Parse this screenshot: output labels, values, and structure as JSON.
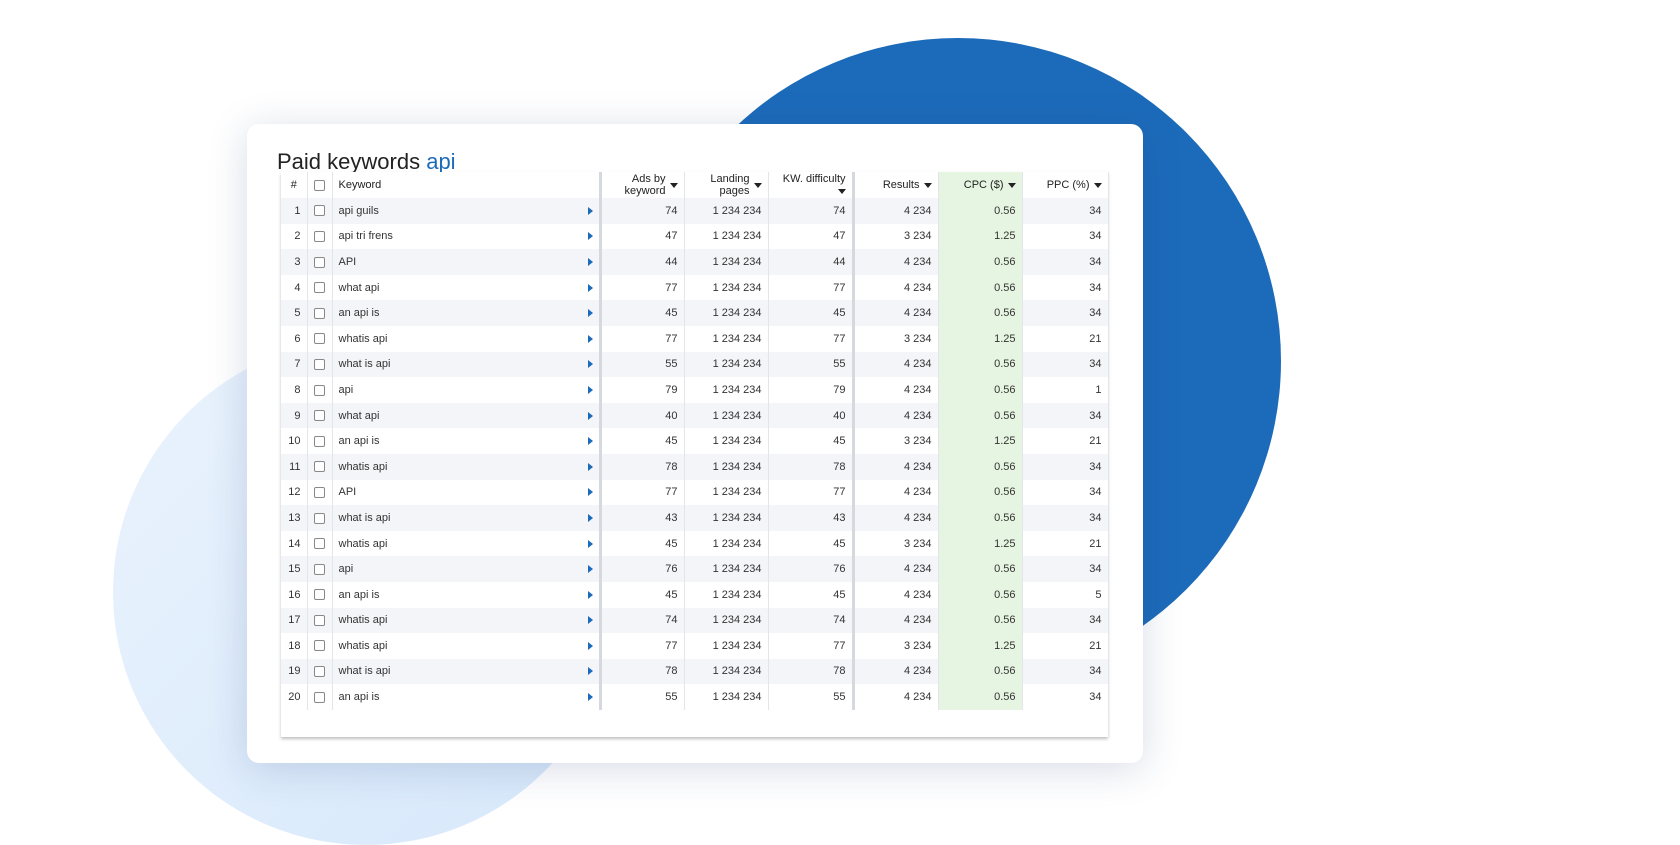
{
  "header": {
    "title": "Paid keywords",
    "title_highlight": "api"
  },
  "table": {
    "columns": [
      "#",
      "Keyword",
      "Ads by keyword",
      "Landing pages",
      "KW. difficulty",
      "Results",
      "CPC ($)",
      "PPC (%)"
    ],
    "rows": [
      [
        "1",
        "api guils",
        "74",
        "1 234 234",
        "74",
        "4 234",
        "0.56",
        "34"
      ],
      [
        "2",
        "api tri frens",
        "47",
        "1 234 234",
        "47",
        "3 234",
        "1.25",
        "34"
      ],
      [
        "3",
        "API",
        "44",
        "1 234 234",
        "44",
        "4 234",
        "0.56",
        "34"
      ],
      [
        "4",
        "what api",
        "77",
        "1 234 234",
        "77",
        "4 234",
        "0.56",
        "34"
      ],
      [
        "5",
        "an api is",
        "45",
        "1 234 234",
        "45",
        "4 234",
        "0.56",
        "34"
      ],
      [
        "6",
        "whatis api",
        "77",
        "1 234 234",
        "77",
        "3 234",
        "1.25",
        "21"
      ],
      [
        "7",
        "what is api",
        "55",
        "1 234 234",
        "55",
        "4 234",
        "0.56",
        "34"
      ],
      [
        "8",
        "api",
        "79",
        "1 234 234",
        "79",
        "4 234",
        "0.56",
        "1"
      ],
      [
        "9",
        "what api",
        "40",
        "1 234 234",
        "40",
        "4 234",
        "0.56",
        "34"
      ],
      [
        "10",
        "an api is",
        "45",
        "1 234 234",
        "45",
        "3 234",
        "1.25",
        "21"
      ],
      [
        "11",
        "whatis api",
        "78",
        "1 234 234",
        "78",
        "4 234",
        "0.56",
        "34"
      ],
      [
        "12",
        "API",
        "77",
        "1 234 234",
        "77",
        "4 234",
        "0.56",
        "34"
      ],
      [
        "13",
        "what is api",
        "43",
        "1 234 234",
        "43",
        "4 234",
        "0.56",
        "34"
      ],
      [
        "14",
        "whatis api",
        "45",
        "1 234 234",
        "45",
        "3 234",
        "1.25",
        "21"
      ],
      [
        "15",
        "api",
        "76",
        "1 234 234",
        "76",
        "4 234",
        "0.56",
        "34"
      ],
      [
        "16",
        "an api is",
        "45",
        "1 234 234",
        "45",
        "4 234",
        "0.56",
        "5"
      ],
      [
        "17",
        "whatis api",
        "74",
        "1 234 234",
        "74",
        "4 234",
        "0.56",
        "34"
      ],
      [
        "18",
        "whatis api",
        "77",
        "1 234 234",
        "77",
        "3 234",
        "1.25",
        "21"
      ],
      [
        "19",
        "what is api",
        "78",
        "1 234 234",
        "78",
        "4 234",
        "0.56",
        "34"
      ],
      [
        "20",
        "an api is",
        "55",
        "1 234 234",
        "55",
        "4 234",
        "0.56",
        "34"
      ]
    ]
  }
}
